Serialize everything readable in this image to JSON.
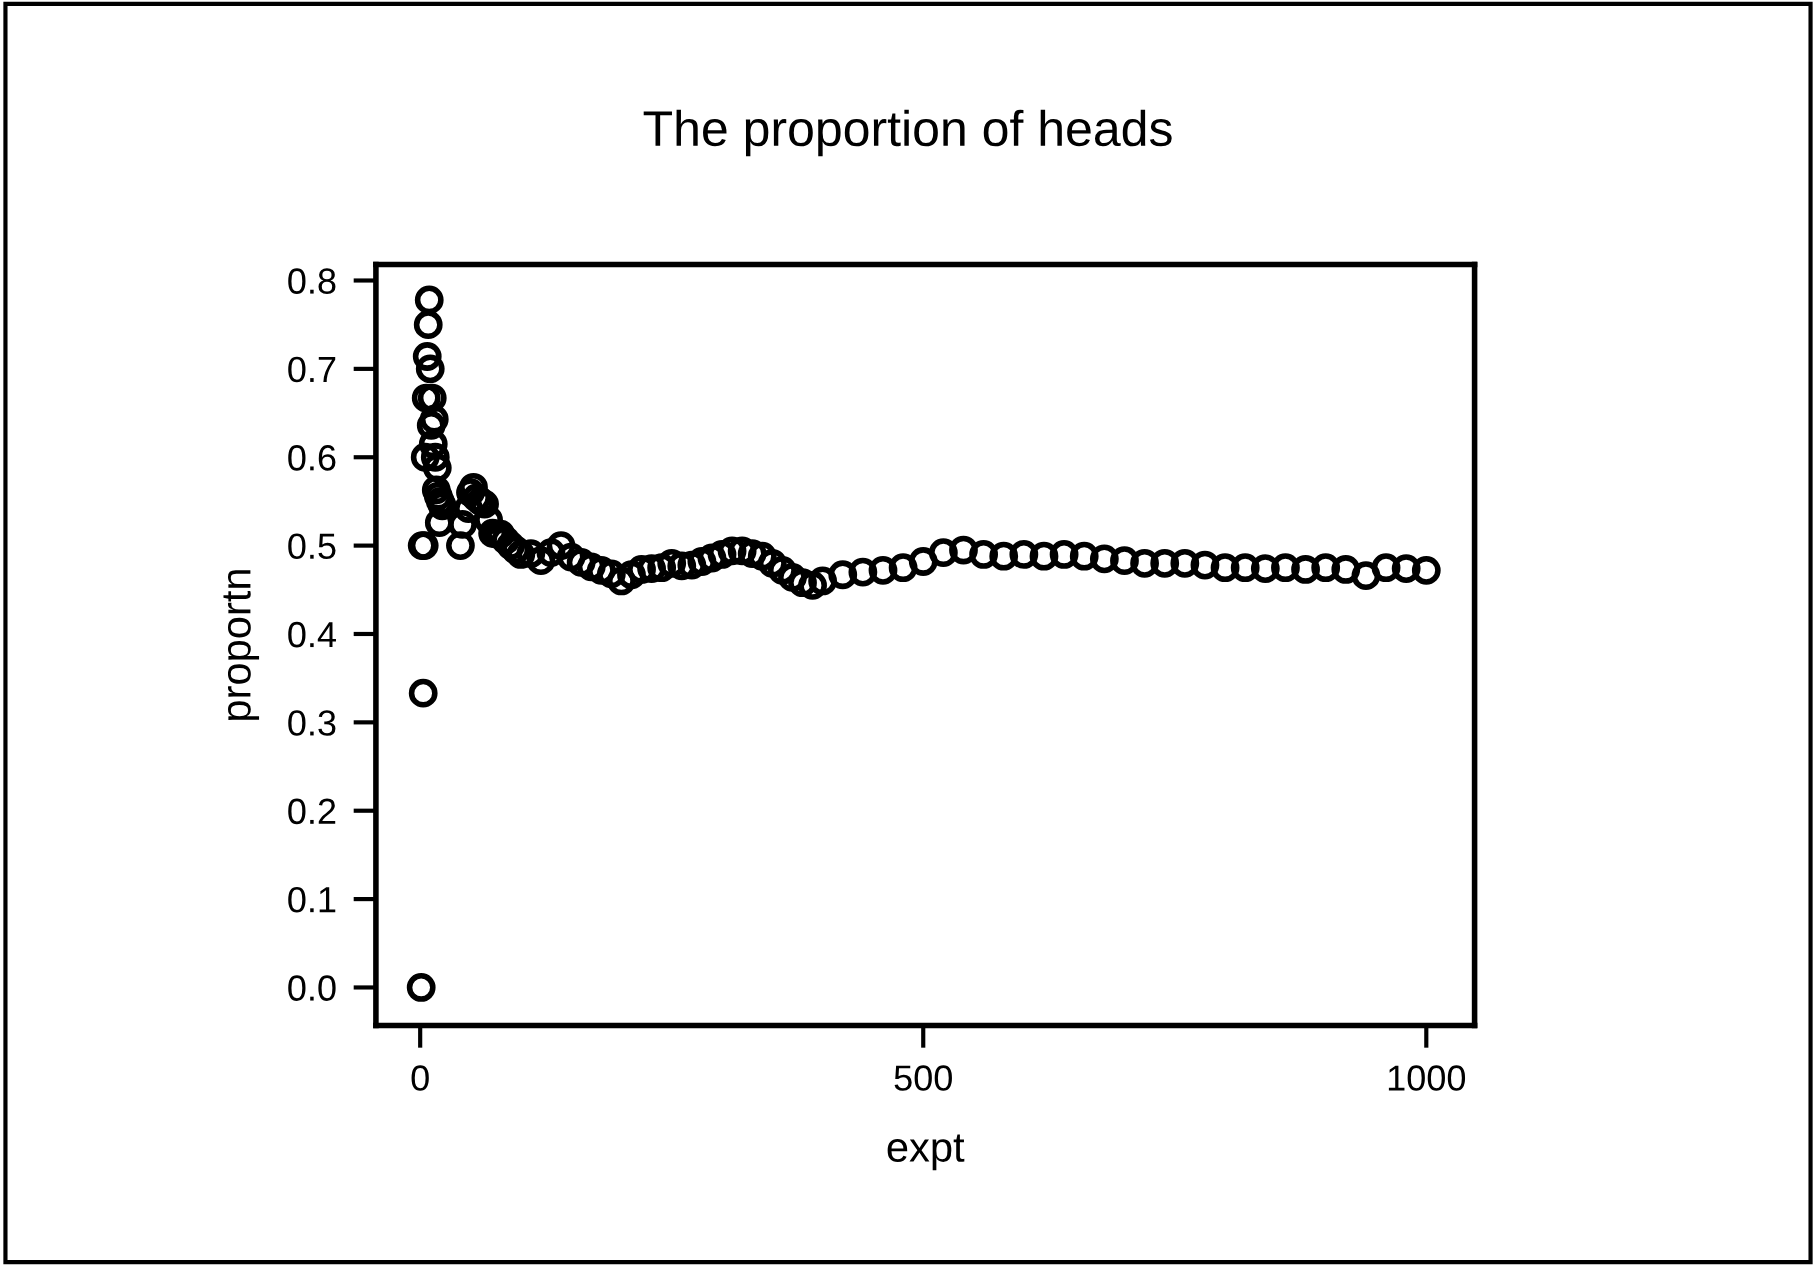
{
  "chart_data": {
    "type": "scatter",
    "title": "The proportion of heads",
    "xlabel": "expt",
    "ylabel": "proportn",
    "xlim": [
      -44,
      1048
    ],
    "ylim": [
      -0.043,
      0.818
    ],
    "xticks": [
      0,
      500,
      1000
    ],
    "yticks": [
      {
        "value": 0,
        "label": "0.0"
      },
      0.1,
      0.2,
      0.3,
      0.4,
      0.5,
      0.6,
      0.7,
      0.8
    ],
    "grid": false,
    "marker": "circle",
    "series": [
      {
        "color": "#000000",
        "x": [
          1,
          2,
          3,
          4,
          5,
          6,
          7,
          8,
          9,
          10,
          11,
          12,
          13,
          14,
          15,
          16,
          17,
          18,
          19,
          20,
          22,
          40,
          42,
          48,
          50,
          53,
          56,
          60,
          64,
          68,
          72,
          76,
          80,
          85,
          90,
          95,
          100,
          110,
          120,
          130,
          140,
          150,
          160,
          170,
          180,
          190,
          200,
          210,
          220,
          230,
          240,
          250,
          260,
          270,
          280,
          290,
          300,
          310,
          320,
          330,
          340,
          350,
          360,
          370,
          380,
          390,
          400,
          420,
          440,
          460,
          480,
          500,
          520,
          540,
          560,
          580,
          600,
          620,
          640,
          660,
          680,
          700,
          720,
          740,
          760,
          780,
          800,
          820,
          840,
          860,
          880,
          900,
          920,
          940,
          960,
          980,
          1000
        ],
        "values": [
          0,
          0.5,
          0.333,
          0.5,
          0.6,
          0.667,
          0.714,
          0.75,
          0.778,
          0.7,
          0.636,
          0.667,
          0.615,
          0.643,
          0.6,
          0.563,
          0.588,
          0.556,
          0.526,
          0.55,
          0.545,
          0.5,
          0.524,
          0.542,
          0.56,
          0.566,
          0.554,
          0.55,
          0.547,
          0.529,
          0.514,
          0.513,
          0.513,
          0.506,
          0.5,
          0.495,
          0.49,
          0.491,
          0.483,
          0.492,
          0.5,
          0.487,
          0.481,
          0.476,
          0.472,
          0.468,
          0.46,
          0.467,
          0.473,
          0.474,
          0.475,
          0.48,
          0.477,
          0.478,
          0.482,
          0.486,
          0.49,
          0.494,
          0.494,
          0.491,
          0.488,
          0.48,
          0.472,
          0.464,
          0.458,
          0.455,
          0.46,
          0.467,
          0.47,
          0.472,
          0.475,
          0.482,
          0.492,
          0.495,
          0.49,
          0.488,
          0.49,
          0.488,
          0.49,
          0.488,
          0.485,
          0.483,
          0.48,
          0.48,
          0.48,
          0.478,
          0.475,
          0.475,
          0.474,
          0.475,
          0.473,
          0.475,
          0.473,
          0.466,
          0.475,
          0.474,
          0.472
        ]
      }
    ]
  }
}
